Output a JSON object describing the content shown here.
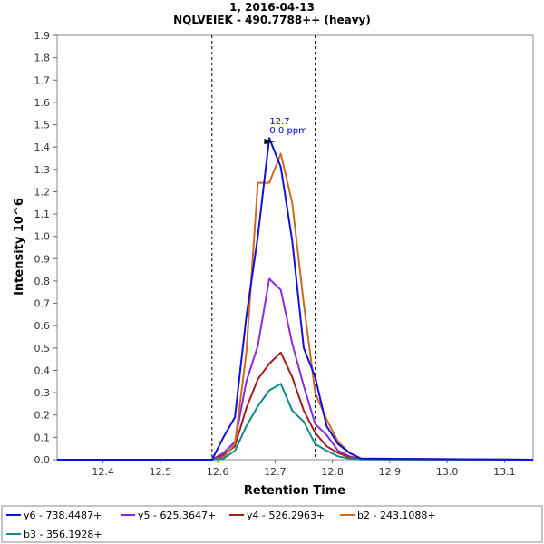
{
  "chart_data": {
    "type": "line",
    "title": "1, 2016-04-13",
    "subtitle": "NQLVEIEK - 490.7788++ (heavy)",
    "xlabel": "Retention Time",
    "ylabel": "Intensity 10^6",
    "xlim": [
      12.32,
      13.15
    ],
    "ylim": [
      0,
      1.9
    ],
    "xticks": [
      "12.4",
      "12.5",
      "12.6",
      "12.7",
      "12.8",
      "12.9",
      "13.0",
      "13.1"
    ],
    "yticks": [
      "0.0",
      "0.1",
      "0.2",
      "0.3",
      "0.4",
      "0.5",
      "0.6",
      "0.7",
      "0.8",
      "0.9",
      "1.0",
      "1.1",
      "1.2",
      "1.3",
      "1.4",
      "1.5",
      "1.6",
      "1.7",
      "1.8",
      "1.9"
    ],
    "grid": false,
    "legend_position": "bottom",
    "integration_boundaries": [
      12.59,
      12.77
    ],
    "peak_annotation": {
      "x": 12.7,
      "y": 1.445,
      "lines": [
        "12.7",
        "0.0 ppm"
      ]
    },
    "x": [
      12.32,
      12.58,
      12.59,
      12.61,
      12.63,
      12.65,
      12.67,
      12.69,
      12.71,
      12.73,
      12.75,
      12.77,
      12.79,
      12.81,
      12.83,
      12.85,
      13.15
    ],
    "series": [
      {
        "name": "y6 - 738.4487+",
        "color": "#1010e0",
        "values": [
          0,
          0,
          0,
          0.1,
          0.19,
          0.64,
          1.0,
          1.44,
          1.31,
          0.98,
          0.5,
          0.37,
          0.15,
          0.07,
          0.03,
          0.005,
          0
        ]
      },
      {
        "name": "y5 - 625.3647+",
        "color": "#8a2be2",
        "values": [
          0,
          0,
          0,
          0.03,
          0.08,
          0.35,
          0.51,
          0.81,
          0.76,
          0.52,
          0.33,
          0.16,
          0.11,
          0.04,
          0.015,
          0.002,
          0
        ]
      },
      {
        "name": "y4 - 526.2963+",
        "color": "#a02020",
        "values": [
          0,
          0,
          0,
          0.02,
          0.06,
          0.23,
          0.36,
          0.43,
          0.48,
          0.37,
          0.22,
          0.12,
          0.06,
          0.03,
          0.01,
          0.002,
          0
        ]
      },
      {
        "name": "b2 - 243.1088+",
        "color": "#cc6a20",
        "values": [
          0,
          0,
          0,
          0.01,
          0.07,
          0.48,
          1.24,
          1.24,
          1.37,
          1.15,
          0.7,
          0.3,
          0.18,
          0.08,
          0.03,
          0.005,
          0
        ]
      },
      {
        "name": "b3 - 356.1928+",
        "color": "#108a8a",
        "values": [
          0,
          0,
          0,
          0.005,
          0.04,
          0.15,
          0.24,
          0.31,
          0.34,
          0.22,
          0.17,
          0.07,
          0.04,
          0.015,
          0.005,
          0.001,
          0
        ]
      }
    ]
  }
}
